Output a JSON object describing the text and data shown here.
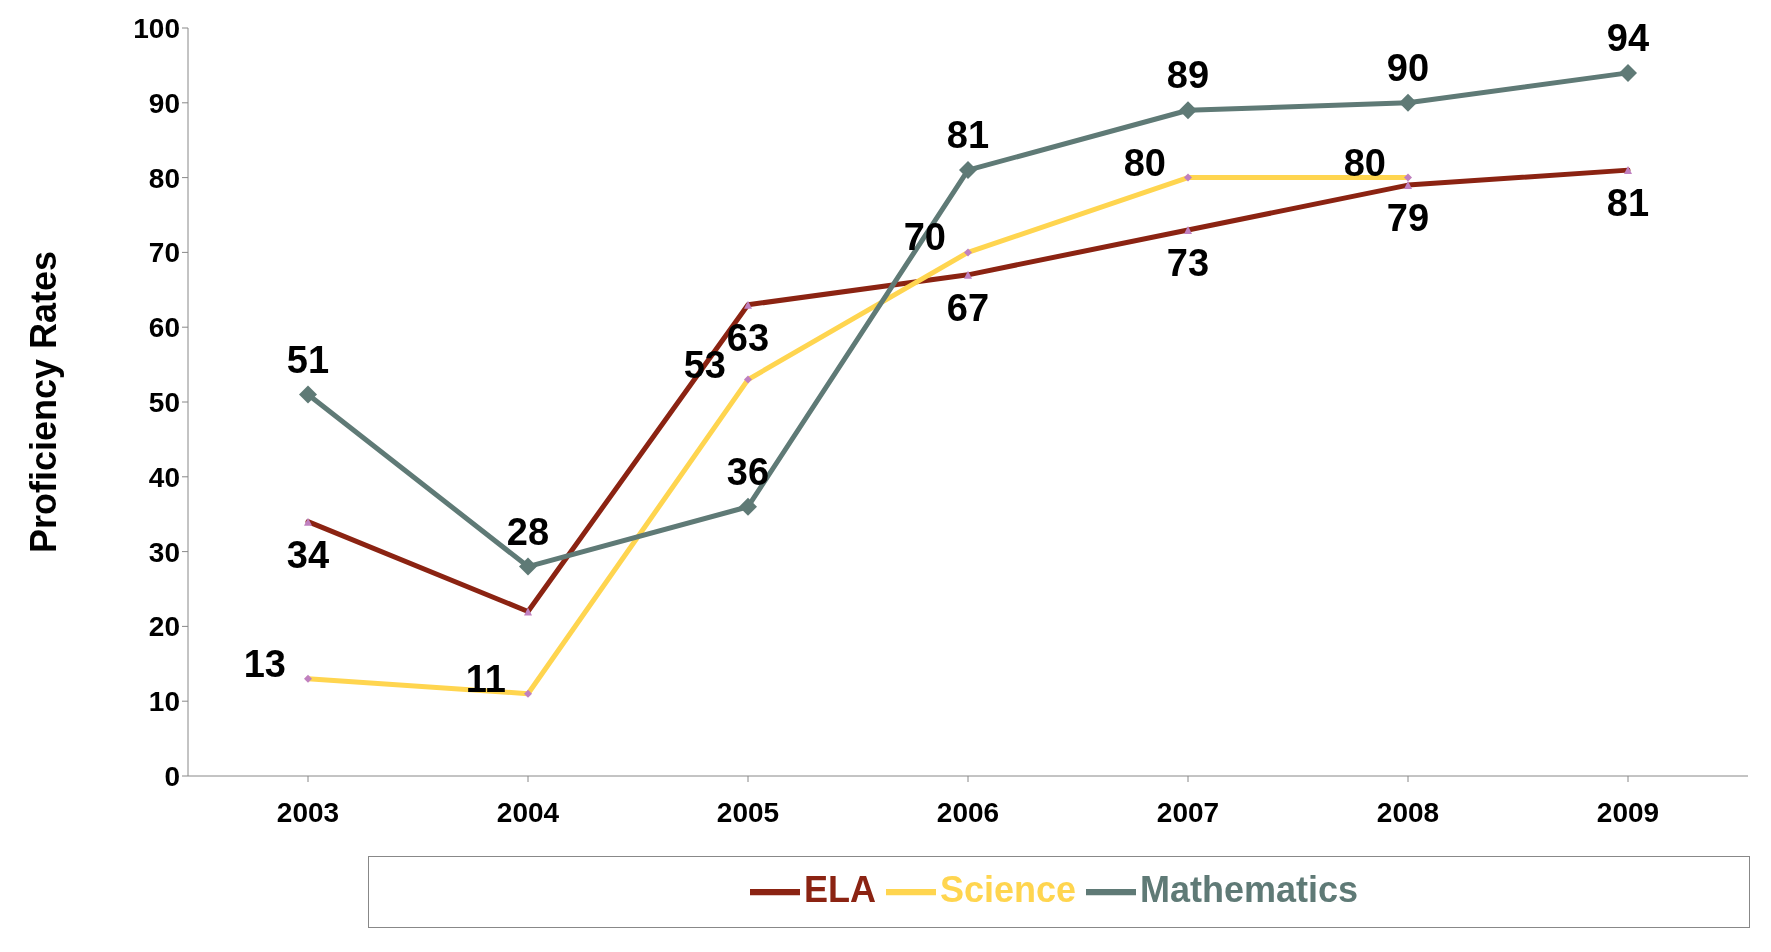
{
  "chart_data": {
    "type": "line",
    "ylabel": "Proficiency Rates",
    "categories": [
      "2003",
      "2004",
      "2005",
      "2006",
      "2007",
      "2008",
      "2009"
    ],
    "ylim": [
      0,
      100
    ],
    "yticks": [
      0,
      10,
      20,
      30,
      40,
      50,
      60,
      70,
      80,
      90,
      100
    ],
    "grid": false,
    "legend": "bottom",
    "series": [
      {
        "name": "ELA",
        "color": "#8b2312",
        "marker": "triangle",
        "values": [
          34,
          22,
          63,
          67,
          73,
          79,
          81
        ],
        "value_labels": [
          "34",
          null,
          "63",
          "67",
          "73",
          "79",
          "81"
        ]
      },
      {
        "name": "Science",
        "color": "#ffd54f",
        "marker": "diamond",
        "values": [
          13,
          11,
          53,
          70,
          80,
          80,
          null
        ],
        "value_labels": [
          "13",
          "11",
          "53",
          "70",
          "80",
          "80",
          null
        ]
      },
      {
        "name": "Mathematics",
        "color": "#5f7a76",
        "marker": "diamond",
        "values": [
          51,
          28,
          36,
          81,
          89,
          90,
          94
        ],
        "value_labels": [
          "51",
          "28",
          "36",
          "81",
          "89",
          "90",
          "94"
        ]
      }
    ]
  }
}
